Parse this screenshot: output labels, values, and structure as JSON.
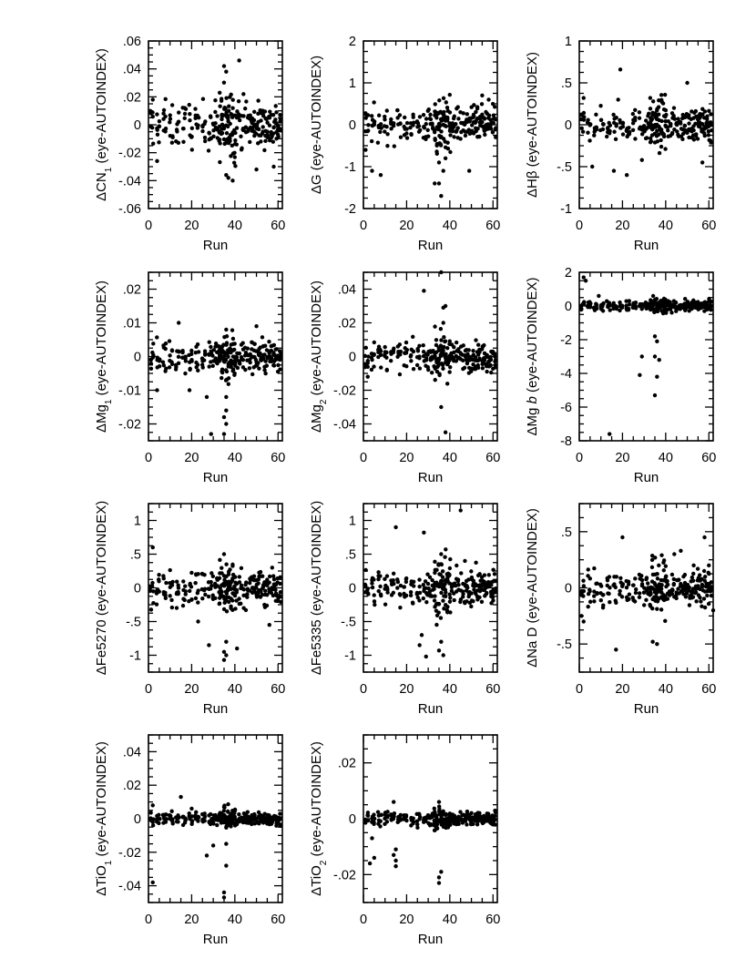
{
  "figure": {
    "panel_xlabel": "Run",
    "x_ticks": [
      "0",
      "20",
      "40",
      "60"
    ]
  },
  "chart_data": [
    {
      "type": "scatter",
      "id": "cn1",
      "ylabel_prefix": "ΔCN",
      "ylabel_sub": "1",
      "ylabel_suffix": " (eye-AUTOINDEX)",
      "xlabel": "Run",
      "xlim": [
        0,
        62
      ],
      "ylim": [
        -0.06,
        0.06
      ],
      "y_ticks": [
        {
          "v": -0.06,
          "t": "-.06"
        },
        {
          "v": -0.04,
          "t": "-.04"
        },
        {
          "v": -0.02,
          "t": "-.02"
        },
        {
          "v": 0,
          "t": "0"
        },
        {
          "v": 0.02,
          "t": ".02"
        },
        {
          "v": 0.04,
          "t": ".04"
        },
        {
          "v": 0.06,
          "t": ".06"
        }
      ],
      "spread": 0.008,
      "outliers": [
        [
          35,
          0.042
        ],
        [
          36,
          0.038
        ],
        [
          42,
          0.046
        ],
        [
          39,
          -0.04
        ],
        [
          37,
          -0.038
        ],
        [
          50,
          -0.032
        ],
        [
          4,
          -0.026
        ],
        [
          58,
          -0.03
        ],
        [
          2,
          0.018
        ],
        [
          44,
          0.022
        ],
        [
          36,
          -0.036
        ]
      ]
    },
    {
      "type": "scatter",
      "id": "g",
      "ylabel_prefix": "ΔG",
      "ylabel_sub": "",
      "ylabel_suffix": " (eye-AUTOINDEX)",
      "xlabel": "Run",
      "xlim": [
        0,
        62
      ],
      "ylim": [
        -2,
        2
      ],
      "y_ticks": [
        {
          "v": -2,
          "t": "-2"
        },
        {
          "v": -1,
          "t": "-1"
        },
        {
          "v": 0,
          "t": "0"
        },
        {
          "v": 1,
          "t": "1"
        },
        {
          "v": 2,
          "t": "2"
        }
      ],
      "spread": 0.2,
      "outliers": [
        [
          33,
          -1.4
        ],
        [
          35,
          -1.4
        ],
        [
          36,
          -1.7
        ],
        [
          37,
          -1.1
        ],
        [
          35,
          -0.9
        ],
        [
          38,
          -0.8
        ],
        [
          49,
          -1.1
        ],
        [
          4,
          -1.1
        ],
        [
          8,
          -1.2
        ],
        [
          55,
          0.7
        ],
        [
          58,
          0.6
        ],
        [
          1,
          -0.6
        ]
      ]
    },
    {
      "type": "scatter",
      "id": "hbeta",
      "ylabel_prefix": "ΔHβ",
      "ylabel_sub": "",
      "ylabel_suffix": " (eye-AUTOINDEX)",
      "xlabel": "Run",
      "xlim": [
        0,
        62
      ],
      "ylim": [
        -1,
        1
      ],
      "y_ticks": [
        {
          "v": -1,
          "t": "-1"
        },
        {
          "v": -0.5,
          "t": "-.5"
        },
        {
          "v": 0,
          "t": "0"
        },
        {
          "v": 0.5,
          "t": ".5"
        },
        {
          "v": 1,
          "t": "1"
        }
      ],
      "spread": 0.09,
      "outliers": [
        [
          19,
          0.66
        ],
        [
          22,
          -0.6
        ],
        [
          50,
          0.5
        ],
        [
          16,
          -0.55
        ],
        [
          6,
          -0.5
        ],
        [
          57,
          -0.45
        ],
        [
          29,
          -0.42
        ],
        [
          2,
          0.32
        ],
        [
          18,
          0.3
        ]
      ]
    },
    {
      "type": "scatter",
      "id": "mg1",
      "ylabel_prefix": "ΔMg",
      "ylabel_sub": "1",
      "ylabel_suffix": " (eye-AUTOINDEX)",
      "xlabel": "Run",
      "xlim": [
        0,
        62
      ],
      "ylim": [
        -0.025,
        0.025
      ],
      "y_ticks": [
        {
          "v": -0.02,
          "t": "-.02"
        },
        {
          "v": -0.01,
          "t": "-.01"
        },
        {
          "v": 0,
          "t": "0"
        },
        {
          "v": 0.01,
          "t": ".01"
        },
        {
          "v": 0.02,
          "t": ".02"
        }
      ],
      "spread": 0.0025,
      "outliers": [
        [
          35,
          -0.023
        ],
        [
          36,
          -0.02
        ],
        [
          35,
          -0.018
        ],
        [
          36,
          -0.016
        ],
        [
          29,
          -0.023
        ],
        [
          36,
          -0.012
        ],
        [
          14,
          0.01
        ],
        [
          50,
          0.009
        ],
        [
          27,
          -0.012
        ],
        [
          4,
          -0.01
        ],
        [
          19,
          -0.01
        ],
        [
          36,
          0.008
        ]
      ]
    },
    {
      "type": "scatter",
      "id": "mg2",
      "ylabel_prefix": "ΔMg",
      "ylabel_sub": "2",
      "ylabel_suffix": " (eye-AUTOINDEX)",
      "xlabel": "Run",
      "xlim": [
        0,
        62
      ],
      "ylim": [
        -0.05,
        0.05
      ],
      "y_ticks": [
        {
          "v": -0.04,
          "t": "-.04"
        },
        {
          "v": -0.02,
          "t": "-.02"
        },
        {
          "v": 0,
          "t": "0"
        },
        {
          "v": 0.02,
          "t": ".02"
        },
        {
          "v": 0.04,
          "t": ".04"
        }
      ],
      "spread": 0.004,
      "outliers": [
        [
          36,
          0.05
        ],
        [
          28,
          0.039
        ],
        [
          38,
          0.03
        ],
        [
          37,
          0.029
        ],
        [
          38,
          -0.045
        ],
        [
          36,
          -0.03
        ],
        [
          2,
          -0.012
        ],
        [
          37,
          0.02
        ]
      ]
    },
    {
      "type": "scatter",
      "id": "mgb",
      "ylabel_prefix": "ΔMg ",
      "ylabel_italic": "b",
      "ylabel_sub": "",
      "ylabel_suffix": " (eye-AUTOINDEX)",
      "xlabel": "Run",
      "xlim": [
        0,
        62
      ],
      "ylim": [
        -8,
        2
      ],
      "y_ticks": [
        {
          "v": -8,
          "t": "-8"
        },
        {
          "v": -6,
          "t": "-6"
        },
        {
          "v": -4,
          "t": "-4"
        },
        {
          "v": -2,
          "t": "-2"
        },
        {
          "v": 0,
          "t": "0"
        },
        {
          "v": 2,
          "t": "2"
        }
      ],
      "spread": 0.15,
      "outliers": [
        [
          14,
          -7.6
        ],
        [
          35,
          -5.3
        ],
        [
          36,
          -4.2
        ],
        [
          28,
          -4.1
        ],
        [
          29,
          -3
        ],
        [
          35,
          -3
        ],
        [
          37,
          -3.2
        ],
        [
          35,
          -1.8
        ],
        [
          36,
          -2.1
        ],
        [
          2,
          1.7
        ],
        [
          3,
          1.5
        ],
        [
          9,
          0.6
        ]
      ]
    },
    {
      "type": "scatter",
      "id": "fe5270",
      "ylabel_prefix": "ΔFe5270",
      "ylabel_sub": "",
      "ylabel_suffix": " (eye-AUTOINDEX)",
      "xlabel": "Run",
      "xlim": [
        0,
        62
      ],
      "ylim": [
        -1.25,
        1.25
      ],
      "y_ticks": [
        {
          "v": -1,
          "t": "-1"
        },
        {
          "v": -0.5,
          "t": "-.5"
        },
        {
          "v": 0,
          "t": "0"
        },
        {
          "v": 0.5,
          "t": ".5"
        },
        {
          "v": 1,
          "t": "1"
        }
      ],
      "spread": 0.13,
      "outliers": [
        [
          35,
          -1.07
        ],
        [
          36,
          -1.0
        ],
        [
          35,
          -0.95
        ],
        [
          41,
          -0.9
        ],
        [
          28,
          -0.85
        ],
        [
          36,
          -0.8
        ],
        [
          2,
          0.6
        ],
        [
          56,
          -0.55
        ],
        [
          23,
          -0.5
        ],
        [
          35,
          0.5
        ]
      ]
    },
    {
      "type": "scatter",
      "id": "fe5335",
      "ylabel_prefix": "ΔFe5335",
      "ylabel_sub": "",
      "ylabel_suffix": " (eye-AUTOINDEX)",
      "xlabel": "Run",
      "xlim": [
        0,
        62
      ],
      "ylim": [
        -1.25,
        1.25
      ],
      "y_ticks": [
        {
          "v": -1,
          "t": "-1"
        },
        {
          "v": -0.5,
          "t": "-.5"
        },
        {
          "v": 0,
          "t": "0"
        },
        {
          "v": 0.5,
          "t": ".5"
        },
        {
          "v": 1,
          "t": "1"
        }
      ],
      "spread": 0.13,
      "outliers": [
        [
          15,
          0.9
        ],
        [
          45,
          1.15
        ],
        [
          28,
          0.82
        ],
        [
          36,
          0.5
        ],
        [
          47,
          0.4
        ],
        [
          37,
          -1.0
        ],
        [
          29,
          -1.02
        ],
        [
          35,
          -0.93
        ],
        [
          26,
          -0.85
        ],
        [
          36,
          -0.8
        ],
        [
          27,
          -0.7
        ]
      ]
    },
    {
      "type": "scatter",
      "id": "nad",
      "ylabel_prefix": "ΔNa D",
      "ylabel_sub": "",
      "ylabel_suffix": " (eye-AUTOINDEX)",
      "xlabel": "Run",
      "xlim": [
        0,
        62
      ],
      "ylim": [
        -0.75,
        0.75
      ],
      "y_ticks": [
        {
          "v": -0.5,
          "t": "-.5"
        },
        {
          "v": 0,
          "t": "0"
        },
        {
          "v": 0.5,
          "t": ".5"
        }
      ],
      "spread": 0.08,
      "outliers": [
        [
          20,
          0.45
        ],
        [
          58,
          0.45
        ],
        [
          47,
          0.33
        ],
        [
          44,
          0.3
        ],
        [
          17,
          -0.55
        ],
        [
          36,
          -0.5
        ],
        [
          34,
          -0.48
        ],
        [
          2,
          -0.3
        ],
        [
          1,
          -0.25
        ],
        [
          62,
          -0.2
        ],
        [
          60,
          0.2
        ]
      ]
    },
    {
      "type": "scatter",
      "id": "tio1",
      "ylabel_prefix": "ΔTiO",
      "ylabel_sub": "1",
      "ylabel_suffix": " (eye-AUTOINDEX)",
      "xlabel": "Run",
      "xlim": [
        0,
        62
      ],
      "ylim": [
        -0.05,
        0.05
      ],
      "y_ticks": [
        {
          "v": -0.04,
          "t": "-.04"
        },
        {
          "v": -0.02,
          "t": "-.02"
        },
        {
          "v": 0,
          "t": "0"
        },
        {
          "v": 0.02,
          "t": ".02"
        },
        {
          "v": 0.04,
          "t": ".04"
        }
      ],
      "spread": 0.0018,
      "outliers": [
        [
          35,
          -0.047
        ],
        [
          35,
          -0.044
        ],
        [
          36,
          -0.028
        ],
        [
          2,
          -0.038
        ],
        [
          27,
          -0.022
        ],
        [
          30,
          -0.016
        ],
        [
          36,
          -0.015
        ],
        [
          15,
          0.013
        ],
        [
          35,
          0.007
        ],
        [
          2,
          0.008
        ],
        [
          20,
          0.006
        ]
      ]
    },
    {
      "type": "scatter",
      "id": "tio2",
      "ylabel_prefix": "ΔTiO",
      "ylabel_sub": "2",
      "ylabel_suffix": " (eye-AUTOINDEX)",
      "xlabel": "Run",
      "xlim": [
        0,
        62
      ],
      "ylim": [
        -0.03,
        0.03
      ],
      "y_ticks": [
        {
          "v": -0.02,
          "t": "-.02"
        },
        {
          "v": 0,
          "t": "0"
        },
        {
          "v": 0.02,
          "t": ".02"
        }
      ],
      "spread": 0.0012,
      "outliers": [
        [
          35,
          -0.023
        ],
        [
          35,
          -0.021
        ],
        [
          36,
          -0.019
        ],
        [
          15,
          -0.017
        ],
        [
          15,
          -0.015
        ],
        [
          14,
          -0.013
        ],
        [
          3,
          -0.016
        ],
        [
          5,
          -0.014
        ],
        [
          14,
          0.006
        ],
        [
          35,
          0.006
        ],
        [
          4,
          -0.007
        ],
        [
          15,
          -0.011
        ]
      ]
    }
  ]
}
